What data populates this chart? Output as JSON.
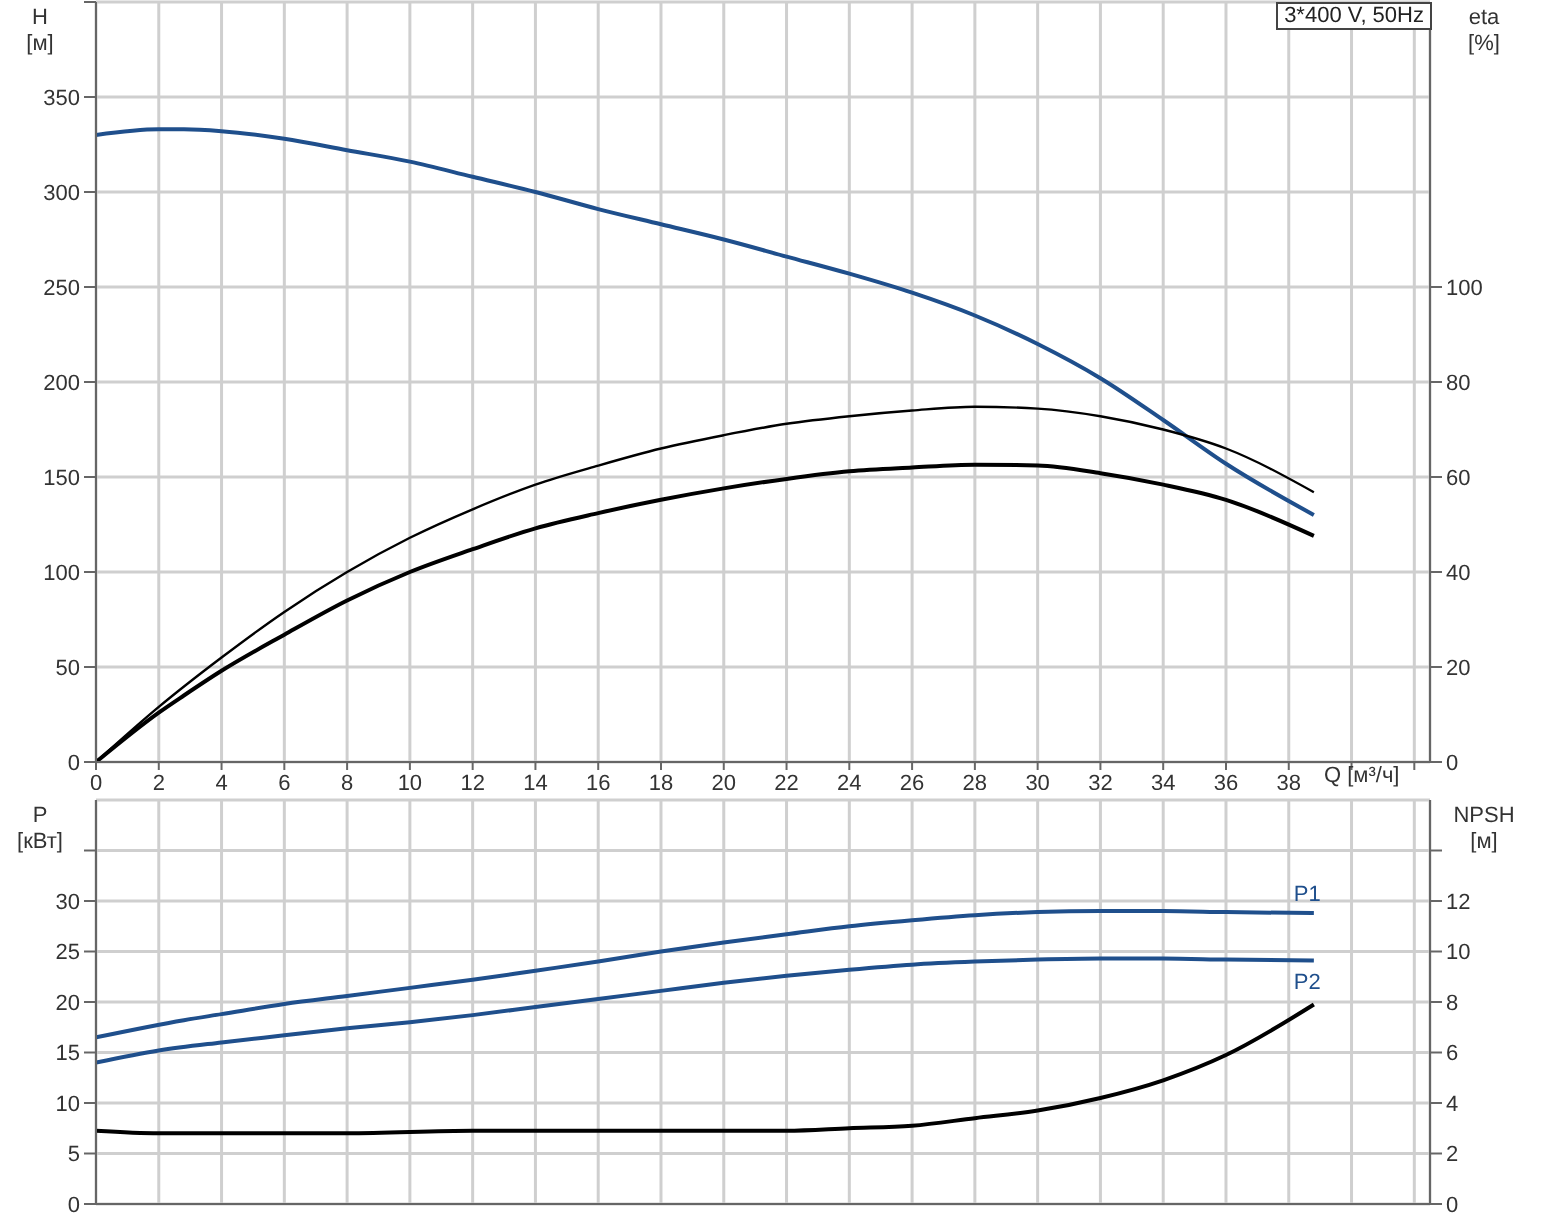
{
  "chart_data": [
    {
      "type": "line",
      "xlabel": "Q [м³/ч]",
      "ylabel": "H [м]",
      "y2label": "eta [%]",
      "annotations": [
        "3*400 V, 50Hz"
      ],
      "xlim": [
        0,
        42.5
      ],
      "xticks": [
        0,
        2,
        4,
        6,
        8,
        10,
        12,
        14,
        16,
        18,
        20,
        22,
        24,
        26,
        28,
        30,
        32,
        34,
        36,
        38,
        {
          "value": 40,
          "label": null
        },
        {
          "value": 42,
          "label": null
        }
      ],
      "ylim": [
        0,
        400
      ],
      "yticks": [
        0,
        50,
        100,
        150,
        200,
        250,
        300,
        350,
        {
          "value": 400,
          "label": null
        }
      ],
      "y2lim": [
        0,
        160
      ],
      "y2ticks": [
        0,
        20,
        40,
        60,
        80,
        100
      ],
      "grid": true,
      "legend": false,
      "marker": "none",
      "line_style": "solid",
      "series": [
        {
          "color": "#1f4f8c",
          "x": [
            0,
            2,
            2.8,
            4,
            6,
            8,
            10,
            12,
            14,
            16,
            18,
            20,
            22,
            24,
            26,
            28,
            30,
            32,
            34,
            36,
            38.8
          ],
          "values": [
            330,
            333,
            333,
            332,
            328,
            322,
            316,
            308,
            300,
            291,
            283,
            275,
            266,
            257,
            247,
            235,
            220,
            202,
            180,
            157,
            130
          ]
        },
        {
          "color": "#000000",
          "axis": "y2",
          "x": [
            0,
            2,
            4,
            6,
            8,
            10,
            12,
            14,
            16,
            18,
            20,
            22,
            24,
            26,
            28,
            30,
            32,
            34,
            36,
            38.8
          ],
          "values": [
            0,
            11.6,
            22,
            31.6,
            40,
            47.2,
            53.2,
            58.4,
            62.4,
            66,
            68.8,
            71.2,
            72.8,
            74,
            74.8,
            74.4,
            72.8,
            70,
            66,
            56.8
          ]
        },
        {
          "color": "#000000",
          "axis": "y2",
          "x": [
            0,
            2,
            2.8,
            4,
            6,
            8,
            10,
            12,
            14,
            16,
            18,
            20,
            22,
            24,
            26,
            28,
            30,
            32,
            34,
            36,
            38.8
          ],
          "values": [
            0,
            10.4,
            14,
            19.2,
            26.8,
            34,
            40,
            44.8,
            49.2,
            52.4,
            55.2,
            57.6,
            59.6,
            61.2,
            62,
            62.6,
            62.4,
            60.8,
            58.4,
            55.2,
            47.6
          ]
        }
      ]
    },
    {
      "type": "line",
      "ylabel": "P [кВт]",
      "y2label": "NPSH [м]",
      "xlim": [
        0,
        42.5
      ],
      "xticks": [
        0,
        2,
        4,
        6,
        8,
        10,
        12,
        14,
        16,
        18,
        20,
        22,
        24,
        26,
        28,
        30,
        32,
        34,
        36,
        38,
        40,
        42
      ],
      "tick_labels": "y",
      "ylim": [
        0,
        40
      ],
      "yticks": [
        0,
        5,
        10,
        15,
        20,
        25,
        30,
        {
          "value": 35,
          "label": null
        }
      ],
      "y2lim": [
        0,
        16
      ],
      "y2ticks": [
        0,
        2,
        4,
        6,
        8,
        10,
        12,
        {
          "value": 14,
          "label": null
        }
      ],
      "grid": true,
      "legend": false,
      "marker": "none",
      "line_style": "solid",
      "series": [
        {
          "name": "P1",
          "color": "#1f4f8c",
          "x": [
            0,
            2.8,
            4,
            6,
            8,
            10,
            12,
            14,
            16,
            18,
            20,
            22,
            24,
            26,
            28,
            30,
            32,
            34,
            36,
            38.8
          ],
          "values": [
            16.5,
            18.2,
            18.8,
            19.8,
            20.6,
            21.4,
            22.2,
            23.1,
            24,
            25,
            25.9,
            26.7,
            27.5,
            28.1,
            28.6,
            28.9,
            29,
            29,
            28.9,
            28.8
          ]
        },
        {
          "name": "P2",
          "color": "#1f4f8c",
          "x": [
            0,
            2,
            4,
            6,
            8,
            10,
            12,
            14,
            16,
            18,
            20,
            22,
            24,
            26,
            28,
            30,
            32,
            34,
            36,
            38.8
          ],
          "values": [
            14,
            15.2,
            16,
            16.7,
            17.4,
            18,
            18.7,
            19.5,
            20.3,
            21.1,
            21.9,
            22.6,
            23.2,
            23.7,
            24,
            24.2,
            24.3,
            24.3,
            24.2,
            24.1
          ]
        },
        {
          "color": "#000000",
          "axis": "y2",
          "x": [
            0,
            2,
            4,
            8,
            12,
            16,
            20,
            22,
            24,
            26,
            28,
            30,
            32,
            34,
            36,
            38.8
          ],
          "values": [
            2.9,
            2.8,
            2.8,
            2.8,
            2.9,
            2.9,
            2.9,
            2.9,
            3.0,
            3.1,
            3.4,
            3.7,
            4.2,
            4.9,
            5.9,
            7.9
          ]
        }
      ]
    }
  ]
}
